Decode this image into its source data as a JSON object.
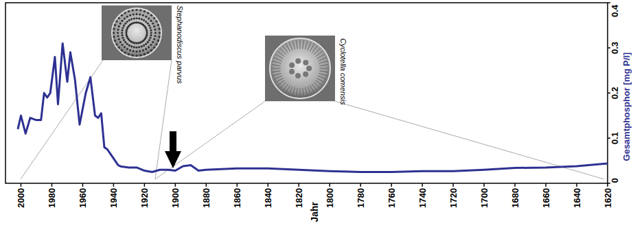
{
  "chart_data": {
    "type": "line",
    "x_label": "Jahr",
    "y_label": "Gesamtphosphor [mg P/l]",
    "x": [
      2002,
      2000,
      1997,
      1994,
      1990,
      1987,
      1985,
      1983,
      1981,
      1978,
      1976,
      1973,
      1970,
      1968,
      1965,
      1962,
      1958,
      1955,
      1952,
      1950,
      1948,
      1946,
      1944,
      1941,
      1937,
      1935,
      1930,
      1925,
      1920,
      1915,
      1910,
      1905,
      1900,
      1895,
      1890,
      1885,
      1880,
      1860,
      1840,
      1820,
      1800,
      1780,
      1760,
      1740,
      1720,
      1700,
      1680,
      1660,
      1640,
      1620
    ],
    "series": [
      {
        "name": "Gesamtphosphor",
        "color": "#2e3192",
        "values": [
          0.12,
          0.15,
          0.11,
          0.145,
          0.14,
          0.14,
          0.2,
          0.19,
          0.2,
          0.28,
          0.175,
          0.31,
          0.225,
          0.29,
          0.23,
          0.13,
          0.2,
          0.235,
          0.15,
          0.145,
          0.155,
          0.08,
          0.075,
          0.06,
          0.04,
          0.037,
          0.035,
          0.035,
          0.028,
          0.025,
          0.03,
          0.03,
          0.028,
          0.038,
          0.04,
          0.028,
          0.03,
          0.033,
          0.033,
          0.03,
          0.027,
          0.025,
          0.025,
          0.027,
          0.027,
          0.03,
          0.034,
          0.035,
          0.038,
          0.044
        ]
      }
    ],
    "xlim": [
      2010,
      1620
    ],
    "xticks": [
      2000,
      1980,
      1960,
      1940,
      1920,
      1900,
      1880,
      1860,
      1840,
      1820,
      1800,
      1780,
      1760,
      1740,
      1720,
      1700,
      1680,
      1660,
      1640,
      1620
    ],
    "ylim": [
      0,
      0.4
    ],
    "yticks": [
      0,
      0.1,
      0.2,
      0.3,
      0.4
    ],
    "grid": false,
    "annotations": [
      {
        "text": "Stephanodiscus parvus"
      },
      {
        "text": "Cyclotella comensis"
      }
    ]
  }
}
